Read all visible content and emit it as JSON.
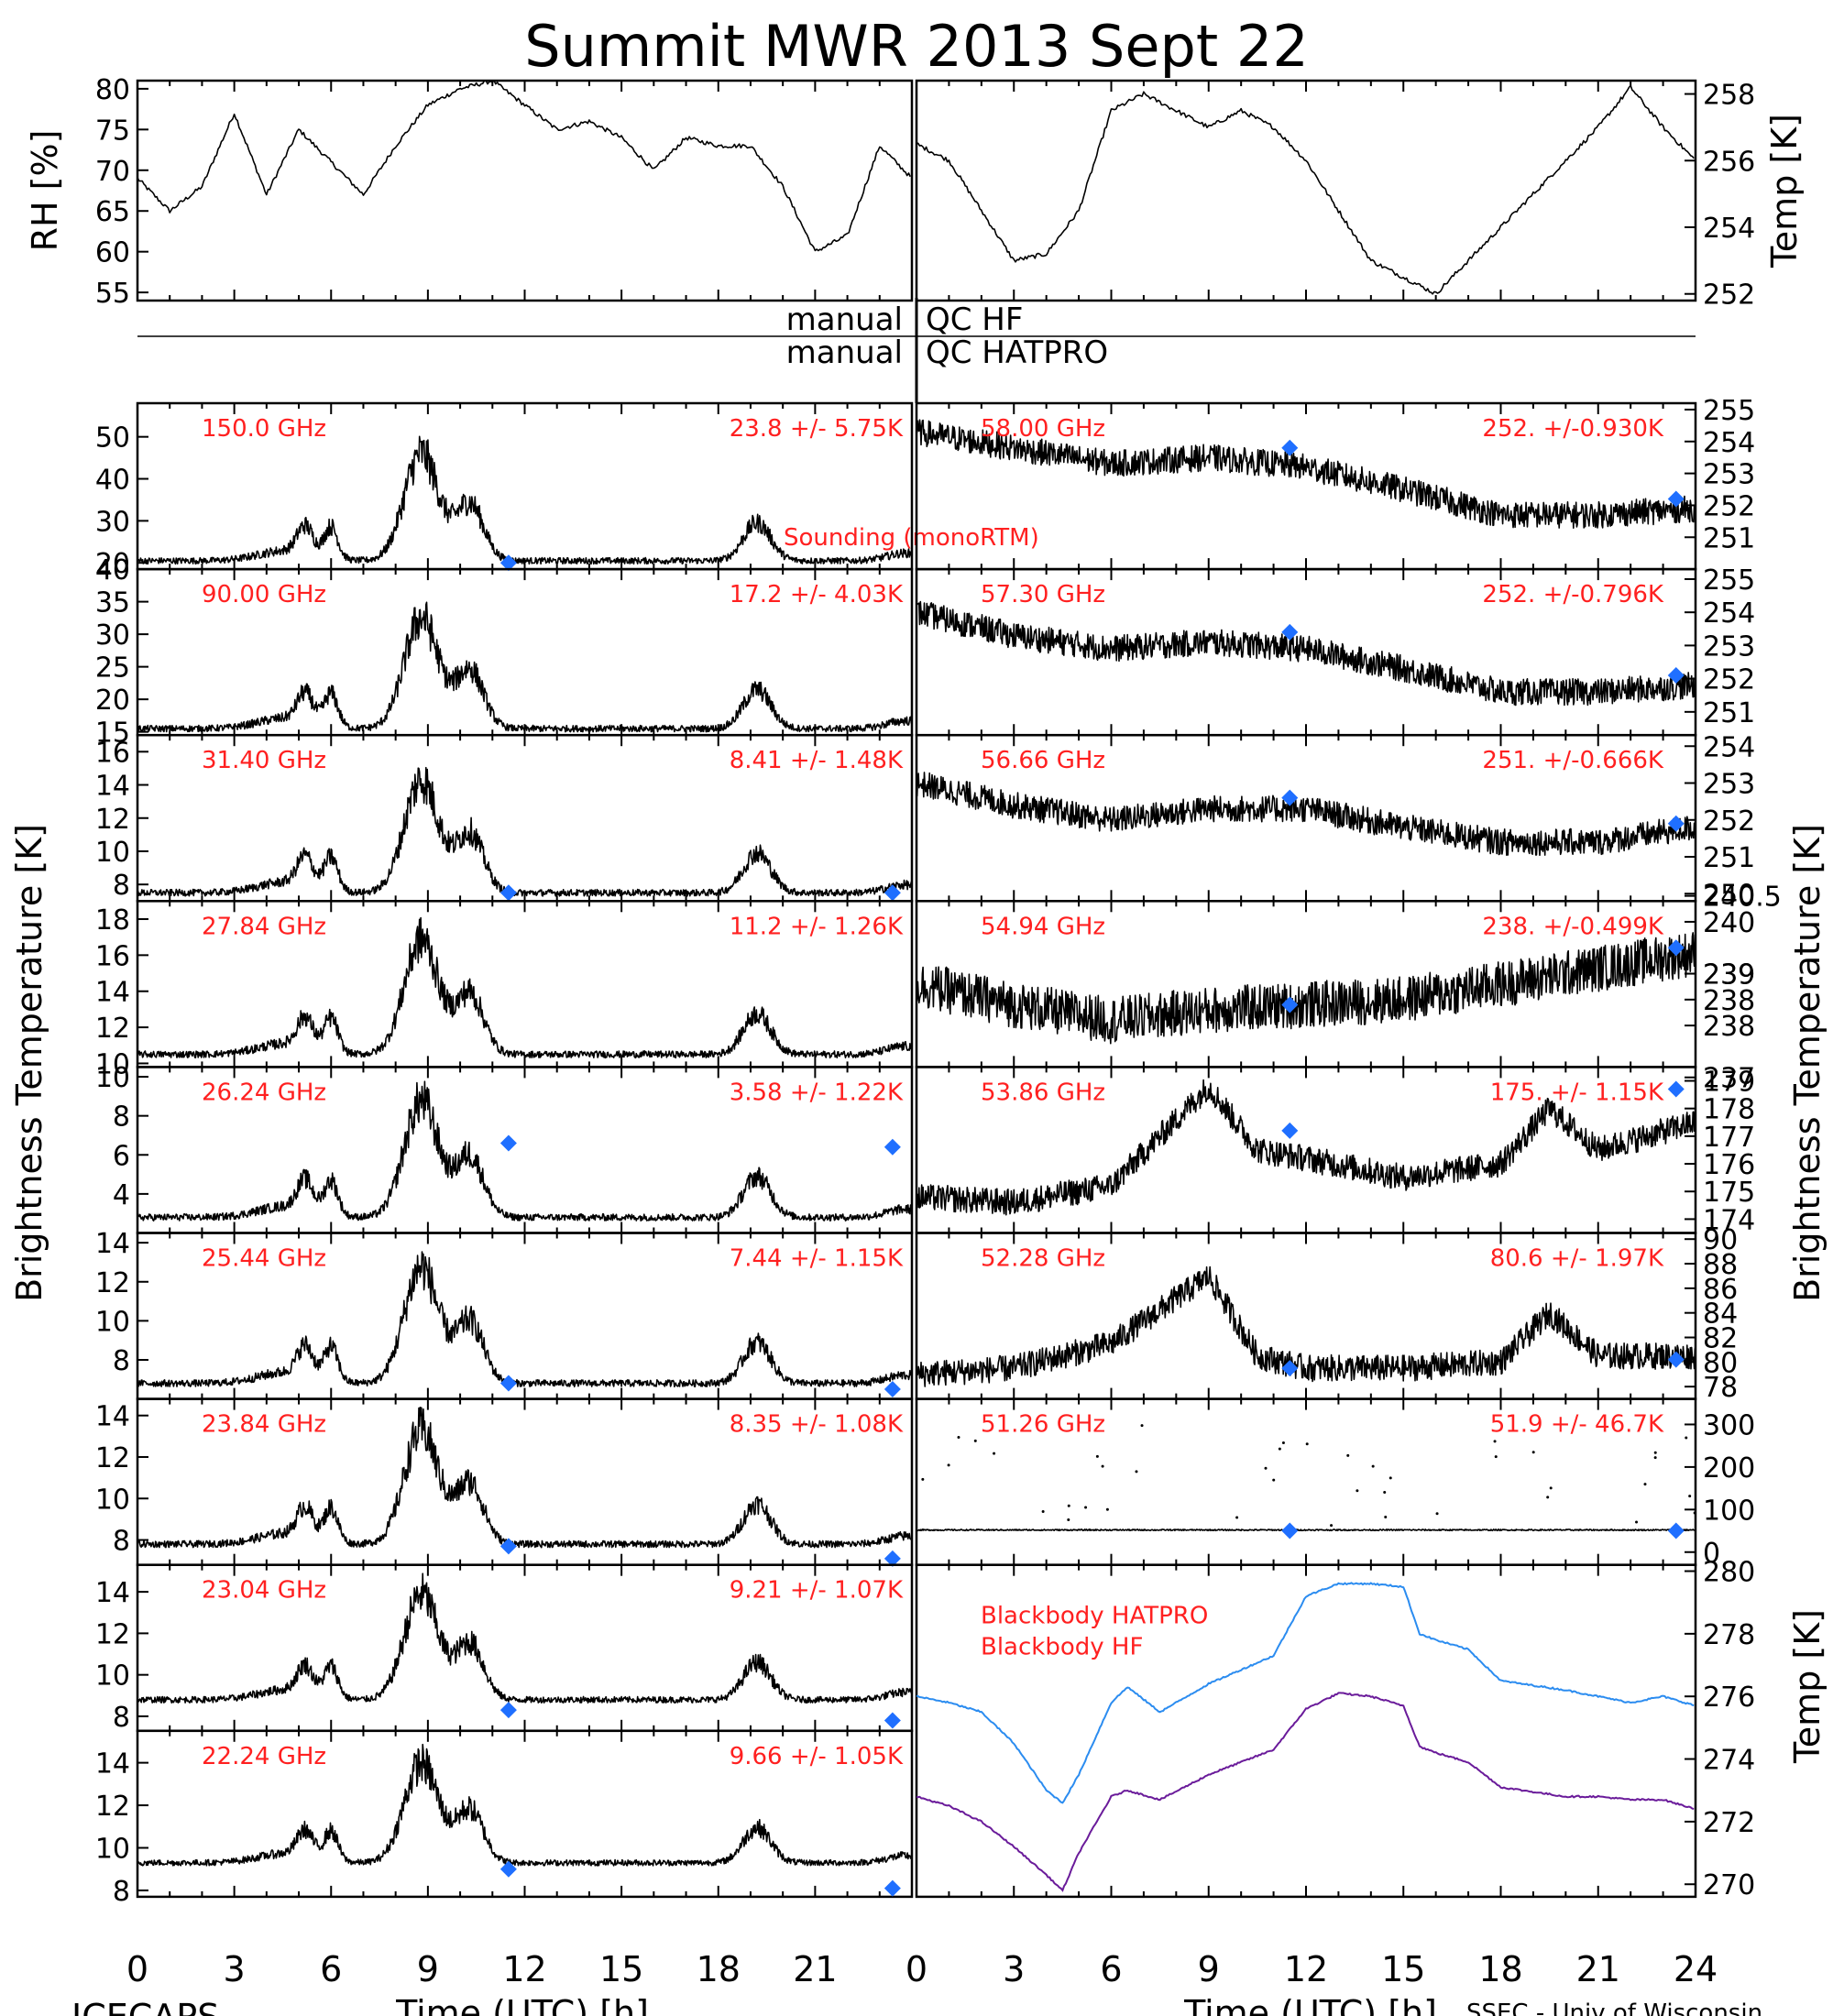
{
  "title": "Summit MWR 2013 Sept 22",
  "footer": {
    "left": "ICECAPS",
    "right": "SSEC - Univ of Wisconsin"
  },
  "axis": {
    "x_label": "Time (UTC) [h]",
    "x_ticks_left": [
      "0",
      "3",
      "6",
      "9",
      "12",
      "15",
      "18",
      "21"
    ],
    "x_ticks_right": [
      "0",
      "3",
      "6",
      "9",
      "12",
      "15",
      "18",
      "21",
      "24"
    ],
    "bt_label": "Brightness Temperature [K]",
    "rh_label": "RH [%]",
    "temp_label": "Temp [K]"
  },
  "qc": {
    "manual_1": "manual",
    "qc_1": "QC HF",
    "manual_2": "manual",
    "qc_2": "QC HATPRO"
  },
  "colors": {
    "annotation": "#ff2020",
    "sounding": "#1f6fff",
    "hatpro": "#2b8cf0",
    "hf": "#6a1b9a",
    "trace": "#000000"
  },
  "chart_data": {
    "type": "line",
    "x_range": [
      0,
      24
    ],
    "top_panels": [
      {
        "name": "RH",
        "ylabel": "RH [%]",
        "ylim": [
          54,
          81
        ],
        "yticks": [
          "55",
          "60",
          "65",
          "70",
          "75",
          "80"
        ],
        "x": [
          0,
          1,
          2,
          3,
          4,
          5,
          6,
          7,
          8,
          9,
          10,
          11,
          12,
          13,
          14,
          15,
          16,
          17,
          18,
          19,
          20,
          21,
          22,
          23,
          24
        ],
        "values": [
          69,
          65,
          68,
          77,
          67,
          75,
          71,
          67,
          73,
          78,
          80,
          81,
          78,
          75,
          76,
          74,
          70,
          74,
          73,
          73,
          68,
          60,
          62,
          73,
          69
        ]
      },
      {
        "name": "Temp",
        "ylabel": "Temp [K]",
        "ylim": [
          251.8,
          258.4
        ],
        "yticks": [
          "252",
          "254",
          "256",
          "258"
        ],
        "x": [
          0,
          1,
          2,
          3,
          4,
          5,
          6,
          7,
          8,
          9,
          10,
          11,
          12,
          13,
          14,
          15,
          16,
          17,
          18,
          19,
          20,
          21,
          22,
          23,
          24
        ],
        "values": [
          256.5,
          256,
          254.5,
          253,
          253.2,
          254.5,
          257.5,
          258,
          257.5,
          257,
          257.5,
          257,
          256,
          254.5,
          253,
          252.5,
          252,
          253,
          254,
          255,
          256,
          257,
          258.2,
          257,
          256
        ]
      }
    ],
    "left_panels": [
      {
        "label": "150.0 GHz",
        "stat": "23.8 +/-  5.75K",
        "ylim": [
          18.5,
          58
        ],
        "yticks": [
          "20",
          "30",
          "40",
          "50"
        ],
        "base": 20.5,
        "amp": 30,
        "sounding": [
          [
            11.5,
            20
          ]
        ],
        "note": "Sounding (monoRTM)"
      },
      {
        "label": "90.00 GHz",
        "stat": "17.2 +/-  4.03K",
        "ylim": [
          14.5,
          40
        ],
        "yticks": [
          "15",
          "20",
          "25",
          "30",
          "35",
          "40"
        ],
        "base": 15.5,
        "amp": 20,
        "sounding": []
      },
      {
        "label": "31.40 GHz",
        "stat": "8.41 +/- 1.48K",
        "ylim": [
          7,
          17
        ],
        "yticks": [
          "8",
          "10",
          "12",
          "14",
          "16"
        ],
        "base": 7.5,
        "amp": 8,
        "sounding": [
          [
            11.5,
            7.5
          ],
          [
            23.4,
            7.5
          ]
        ]
      },
      {
        "label": "27.84 GHz",
        "stat": "11.2 +/- 1.26K",
        "ylim": [
          9.8,
          19
        ],
        "yticks": [
          "10",
          "12",
          "14",
          "16",
          "18"
        ],
        "base": 10.5,
        "amp": 7.5,
        "sounding": []
      },
      {
        "label": "26.24 GHz",
        "stat": "3.58 +/- 1.22K",
        "ylim": [
          2,
          10.5
        ],
        "yticks": [
          "4",
          "6",
          "8",
          "10"
        ],
        "base": 2.8,
        "amp": 7,
        "sounding": [
          [
            11.5,
            6.6
          ],
          [
            23.4,
            6.4
          ]
        ]
      },
      {
        "label": "25.44 GHz",
        "stat": "7.44 +/- 1.15K",
        "ylim": [
          6,
          14.5
        ],
        "yticks": [
          "8",
          "10",
          "12",
          "14"
        ],
        "base": 6.8,
        "amp": 7,
        "sounding": [
          [
            11.5,
            6.8
          ],
          [
            23.4,
            6.5
          ]
        ]
      },
      {
        "label": "23.84 GHz",
        "stat": "8.35 +/- 1.08K",
        "ylim": [
          6.8,
          14.8
        ],
        "yticks": [
          "8",
          "10",
          "12",
          "14"
        ],
        "base": 7.8,
        "amp": 6.5,
        "sounding": [
          [
            11.5,
            7.7
          ],
          [
            23.4,
            7.1
          ]
        ]
      },
      {
        "label": "23.04 GHz",
        "stat": "9.21 +/- 1.07K",
        "ylim": [
          7.3,
          15.3
        ],
        "yticks": [
          "8",
          "10",
          "12",
          "14"
        ],
        "base": 8.8,
        "amp": 6,
        "sounding": [
          [
            11.5,
            8.3
          ],
          [
            23.4,
            7.8
          ]
        ]
      },
      {
        "label": "22.24 GHz",
        "stat": "9.66 +/- 1.05K",
        "ylim": [
          7.7,
          15.5
        ],
        "yticks": [
          "8",
          "10",
          "12",
          "14"
        ],
        "base": 9.3,
        "amp": 5.5,
        "sounding": [
          [
            11.5,
            9.0
          ],
          [
            23.4,
            8.1
          ]
        ]
      }
    ],
    "right_panels": [
      {
        "label": "58.00 GHz",
        "stat": "252. +/-0.930K",
        "ylim": [
          250,
          255.2
        ],
        "yticks": [
          "251",
          "252",
          "253",
          "254",
          "255"
        ],
        "sounding": [
          [
            11.5,
            253.8
          ],
          [
            23.4,
            252.2
          ]
        ],
        "x": [
          0,
          3,
          6,
          9,
          12,
          15,
          18,
          21,
          24
        ],
        "values": [
          254.3,
          253.8,
          253.3,
          253.5,
          253.2,
          252.5,
          251.7,
          251.7,
          251.9
        ]
      },
      {
        "label": "57.30 GHz",
        "stat": "252. +/-0.796K",
        "ylim": [
          250.3,
          255.3
        ],
        "yticks": [
          "251",
          "252",
          "253",
          "254",
          "255"
        ],
        "sounding": [
          [
            11.5,
            253.4
          ],
          [
            23.4,
            252.1
          ]
        ],
        "x": [
          0,
          3,
          6,
          9,
          12,
          15,
          18,
          21,
          24
        ],
        "values": [
          254,
          253.3,
          252.9,
          253.1,
          252.9,
          252.3,
          251.6,
          251.6,
          251.8
        ]
      },
      {
        "label": "56.66 GHz",
        "stat": "251. +/-0.666K",
        "ylim": [
          249.8,
          254.3
        ],
        "yticks": [
          "250",
          "251",
          "252",
          "253",
          "254"
        ],
        "sounding": [
          [
            11.5,
            252.6
          ],
          [
            23.4,
            251.9
          ]
        ],
        "x": [
          0,
          3,
          6,
          9,
          12,
          15,
          18,
          21,
          24
        ],
        "values": [
          253,
          252.4,
          252,
          252.3,
          252.3,
          251.8,
          251.4,
          251.4,
          251.8
        ]
      },
      {
        "label": "54.94 GHz",
        "stat": "238. +/-0.499K",
        "ylim": [
          237.2,
          240.4
        ],
        "yticks": [
          "237",
          "238",
          "238",
          "239",
          "239",
          "240",
          "240.5"
        ],
        "sounding": [
          [
            11.5,
            238.4
          ],
          [
            23.4,
            239.5
          ]
        ],
        "x": [
          0,
          3,
          6,
          9,
          12,
          15,
          18,
          21,
          24
        ],
        "values": [
          238.8,
          238.4,
          238.1,
          238.3,
          238.4,
          238.5,
          238.8,
          239.1,
          239.4
        ]
      },
      {
        "label": "53.86 GHz",
        "stat": "175. +/- 1.15K",
        "ylim": [
          173.5,
          179.5
        ],
        "yticks": [
          "174",
          "175",
          "176",
          "177",
          "178",
          "179"
        ],
        "sounding": [
          [
            11.5,
            177.2
          ],
          [
            23.4,
            178.7
          ]
        ],
        "x": [
          0,
          3,
          6,
          9,
          10.5,
          12,
          15,
          18,
          19.5,
          21,
          24
        ],
        "values": [
          174.8,
          174.6,
          175.2,
          178.8,
          176.5,
          176.2,
          175.5,
          176,
          178,
          176.5,
          177.5
        ]
      },
      {
        "label": "52.28 GHz",
        "stat": "80.6 +/- 1.97K",
        "ylim": [
          77,
          90.5
        ],
        "yticks": [
          "78",
          "80",
          "82",
          "84",
          "86",
          "88",
          "90"
        ],
        "sounding": [
          [
            11.5,
            79.5
          ],
          [
            23.4,
            80.2
          ]
        ],
        "x": [
          0,
          3,
          6,
          9,
          10.5,
          12,
          15,
          18,
          19.5,
          21,
          24
        ],
        "values": [
          79,
          79.5,
          81.5,
          87,
          80.5,
          79.5,
          79.5,
          80,
          84,
          80.5,
          80.5
        ]
      },
      {
        "label": "51.26 GHz",
        "stat": "51.9 +/- 46.7K",
        "ylim": [
          -30,
          360
        ],
        "yticks": [
          "0",
          "100",
          "200",
          "300"
        ],
        "sounding": [
          [
            11.5,
            50
          ],
          [
            23.4,
            50
          ]
        ],
        "x": [
          0,
          24
        ],
        "values": [
          52,
          52
        ]
      }
    ],
    "blackbody": {
      "ylim": [
        269.6,
        280.2
      ],
      "yticks": [
        "270",
        "272",
        "274",
        "276",
        "278",
        "280"
      ],
      "legend": [
        "Blackbody HATPRO",
        "Blackbody HF"
      ],
      "series": [
        {
          "name": "Blackbody HATPRO",
          "x": [
            0,
            1,
            2,
            3,
            4,
            4.5,
            5,
            6,
            6.5,
            7.5,
            9,
            11,
            12,
            13,
            14,
            15,
            15.5,
            16,
            17,
            18,
            20,
            21,
            22,
            23,
            24
          ],
          "values": [
            276,
            275.8,
            275.5,
            274.5,
            273,
            272.6,
            273.5,
            275.8,
            276.3,
            275.5,
            276.4,
            277.3,
            279.2,
            279.6,
            279.6,
            279.5,
            278,
            277.8,
            277.5,
            276.5,
            276.2,
            276,
            275.8,
            276,
            275.7
          ]
        },
        {
          "name": "Blackbody HF",
          "x": [
            0,
            1,
            2,
            3,
            4,
            4.5,
            5,
            6,
            6.5,
            7.5,
            9,
            11,
            12,
            13,
            14,
            15,
            15.5,
            16,
            17,
            18,
            20,
            21,
            22,
            23,
            24
          ],
          "values": [
            272.8,
            272.5,
            272,
            271.2,
            270.3,
            269.8,
            271,
            272.8,
            273,
            272.7,
            273.5,
            274.3,
            275.6,
            276.1,
            276,
            275.7,
            274.4,
            274.2,
            273.9,
            273.1,
            272.8,
            272.8,
            272.7,
            272.7,
            272.4
          ]
        }
      ]
    }
  }
}
